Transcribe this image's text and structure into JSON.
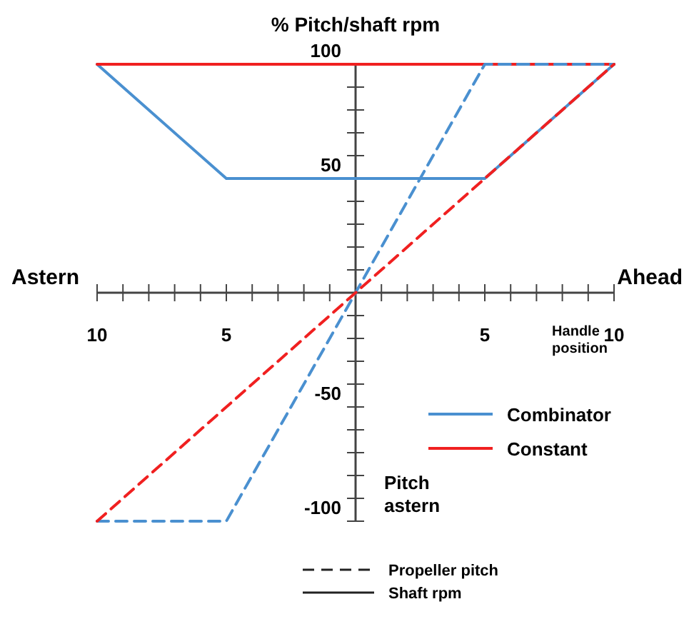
{
  "chart_data": {
    "type": "line",
    "ylabel": "% Pitch/shaft rpm",
    "xlabel": "Handle position",
    "annotations": [
      "Astern",
      "Ahead",
      "Pitch astern",
      "Propeller pitch",
      "Shaft rpm"
    ],
    "xlim": [
      -10,
      10
    ],
    "ylim": [
      -100,
      100
    ],
    "xticks": [
      {
        "value": -10,
        "label": "10"
      },
      {
        "value": -9,
        "label": null
      },
      {
        "value": -8,
        "label": null
      },
      {
        "value": -7,
        "label": null
      },
      {
        "value": -6,
        "label": null
      },
      {
        "value": -5,
        "label": "5"
      },
      {
        "value": -4,
        "label": null
      },
      {
        "value": -3,
        "label": null
      },
      {
        "value": -2,
        "label": null
      },
      {
        "value": -1,
        "label": null
      },
      {
        "value": 1,
        "label": null
      },
      {
        "value": 2,
        "label": null
      },
      {
        "value": 3,
        "label": null
      },
      {
        "value": 4,
        "label": null
      },
      {
        "value": 5,
        "label": "5"
      },
      {
        "value": 6,
        "label": null
      },
      {
        "value": 7,
        "label": null
      },
      {
        "value": 8,
        "label": null
      },
      {
        "value": 9,
        "label": null
      },
      {
        "value": 10,
        "label": "10"
      }
    ],
    "yticks": [
      -100,
      {
        "value": -90,
        "label": null
      },
      {
        "value": -80,
        "label": null
      },
      {
        "value": -70,
        "label": null
      },
      {
        "value": -60,
        "label": null
      },
      -50,
      {
        "value": -40,
        "label": null
      },
      {
        "value": -30,
        "label": null
      },
      {
        "value": -20,
        "label": null
      },
      {
        "value": -10,
        "label": null
      },
      {
        "value": 10,
        "label": null
      },
      {
        "value": 20,
        "label": null
      },
      {
        "value": 30,
        "label": null
      },
      {
        "value": 40,
        "label": null
      },
      50,
      {
        "value": 60,
        "label": null
      },
      {
        "value": 70,
        "label": null
      },
      {
        "value": 80,
        "label": null
      },
      {
        "value": 90,
        "label": null
      },
      100
    ],
    "legend": "bottom right",
    "grid": false,
    "series": [
      {
        "name": "Combinator",
        "color": "#4a90d0",
        "line_style": "solid",
        "x": [
          -10,
          -5,
          5,
          10
        ],
        "values": [
          100,
          50,
          50,
          100
        ]
      },
      {
        "name": "Constant",
        "color": "#f02020",
        "line_style": "solid",
        "x": [
          -10,
          10
        ],
        "values": [
          100,
          100
        ]
      },
      {
        "color": "#4a90d0",
        "line_style": "dashed",
        "x": [
          -10,
          -5,
          5,
          10
        ],
        "values": [
          -100,
          -100,
          100,
          100
        ]
      },
      {
        "color": "#f02020",
        "line_style": "dashed",
        "x": [
          -10,
          10
        ],
        "values": [
          -100,
          100
        ]
      }
    ]
  }
}
